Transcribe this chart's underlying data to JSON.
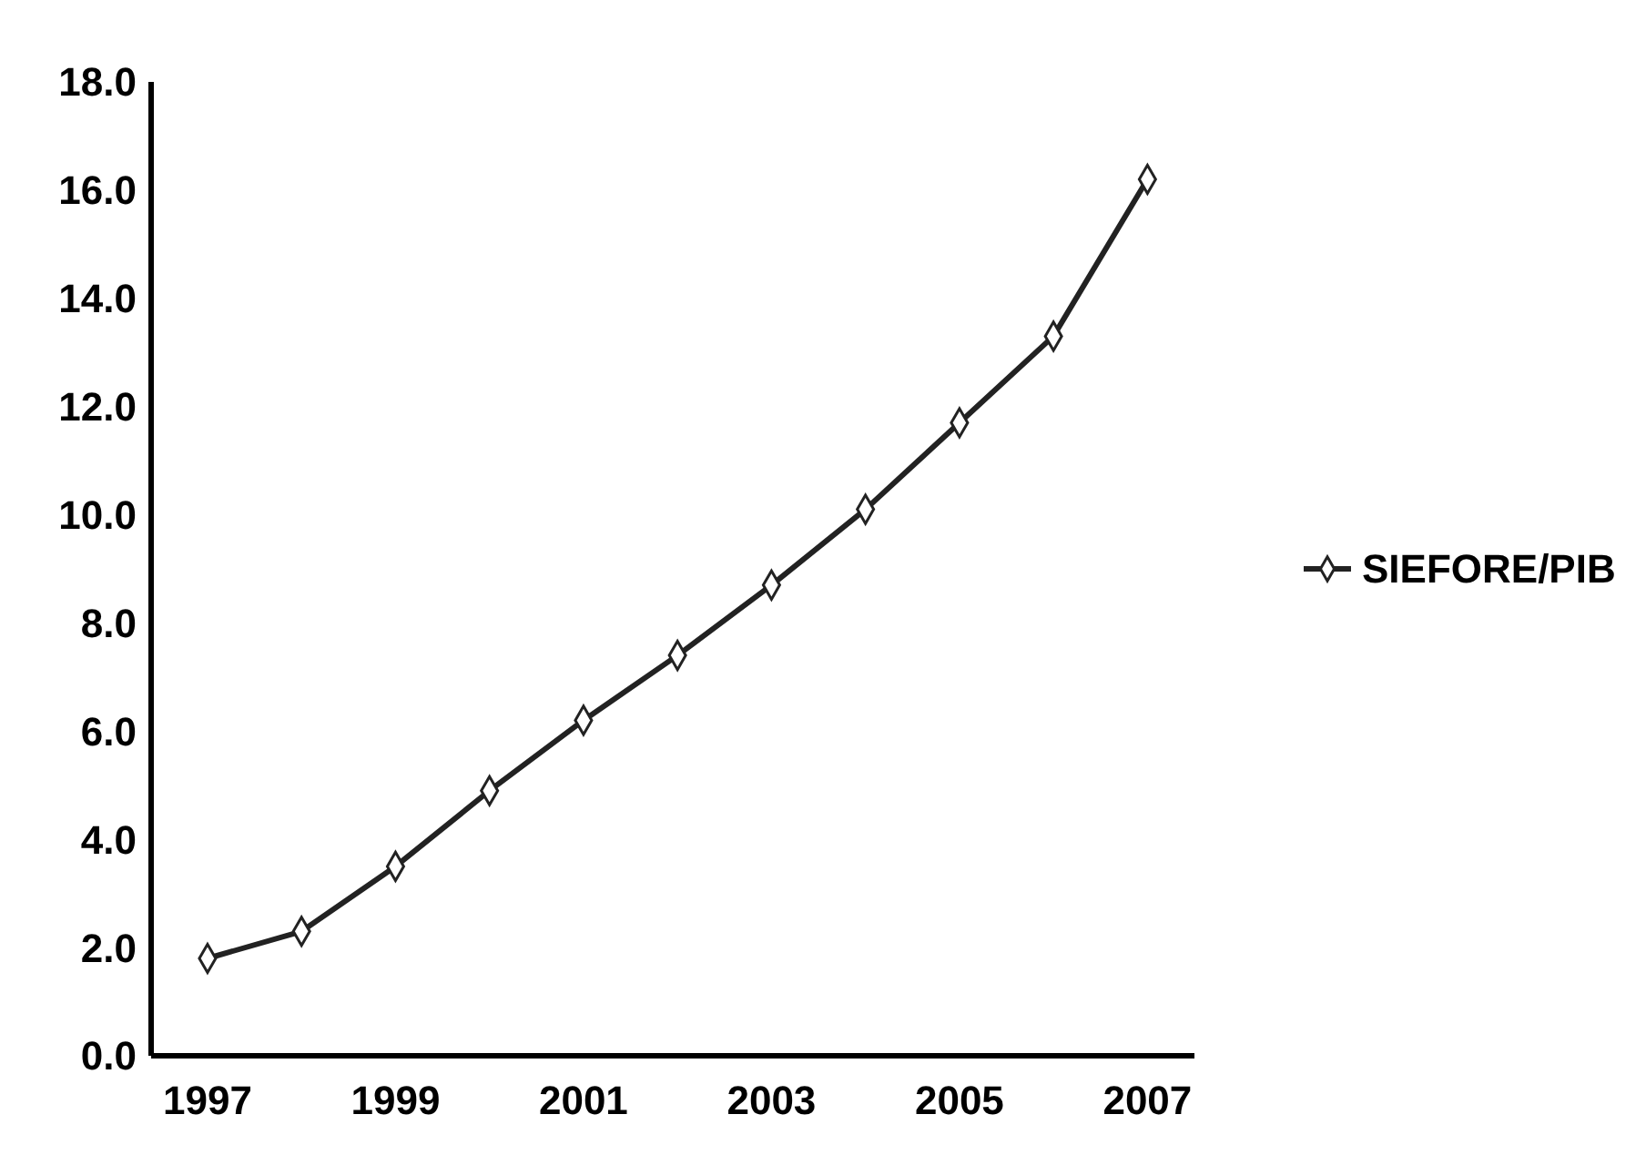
{
  "chart_data": {
    "type": "line",
    "x": [
      1997,
      1998,
      1999,
      2000,
      2001,
      2002,
      2003,
      2004,
      2005,
      2006,
      2007
    ],
    "series": [
      {
        "name": "SIEFORE/PIB",
        "color": "#222222",
        "values": [
          1.8,
          2.3,
          3.5,
          4.9,
          6.2,
          7.4,
          8.7,
          10.1,
          11.7,
          13.3,
          16.2
        ]
      }
    ],
    "xlim": [
      1996.4,
      2007.5
    ],
    "xticks": [
      1997,
      1999,
      2001,
      2003,
      2005,
      2007
    ],
    "ylim": [
      0,
      18
    ],
    "yticks": [
      {
        "value": 0,
        "label": "0.0"
      },
      {
        "value": 2,
        "label": "2.0"
      },
      {
        "value": 4,
        "label": "4.0"
      },
      {
        "value": 6,
        "label": "6.0"
      },
      {
        "value": 8,
        "label": "8.0"
      },
      {
        "value": 10,
        "label": "10.0"
      },
      {
        "value": 12,
        "label": "12.0"
      },
      {
        "value": 14,
        "label": "14.0"
      },
      {
        "value": 16,
        "label": "16.0"
      },
      {
        "value": 18,
        "label": "18.0"
      }
    ],
    "grid": false,
    "legend": "right",
    "marker": "diamond",
    "line_style": "solid"
  }
}
